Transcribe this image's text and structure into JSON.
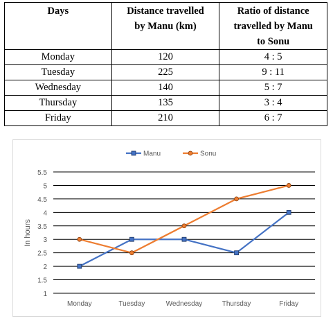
{
  "table": {
    "headers": [
      [
        "Days"
      ],
      [
        "Distance travelled",
        "by Manu (km)"
      ],
      [
        "Ratio of distance",
        "travelled by Manu",
        "to Sonu"
      ]
    ],
    "rows": [
      [
        "Monday",
        "120",
        "4 : 5"
      ],
      [
        "Tuesday",
        "225",
        "9 : 11"
      ],
      [
        "Wednesday",
        "140",
        "5 : 7"
      ],
      [
        "Thursday",
        "135",
        "3 : 4"
      ],
      [
        "Friday",
        "210",
        "6 : 7"
      ]
    ]
  },
  "chart_data": {
    "type": "line",
    "categories": [
      "Monday",
      "Tuesday",
      "Wednesday",
      "Thursday",
      "Friday"
    ],
    "series": [
      {
        "name": "Manu",
        "values": [
          2,
          3,
          3,
          2.5,
          4
        ],
        "color": "#4472c4",
        "marker": "square"
      },
      {
        "name": "Sonu",
        "values": [
          3,
          2.5,
          3.5,
          4.5,
          5
        ],
        "color": "#ed7d31",
        "marker": "circle"
      }
    ],
    "ylabel": "In hours",
    "ylim": [
      1,
      5.5
    ],
    "yticks": [
      "1",
      "1.5",
      "2",
      "2.5",
      "3",
      "3.5",
      "4",
      "4.5",
      "5",
      "5.5"
    ],
    "grid": true,
    "legend": "top-center"
  }
}
